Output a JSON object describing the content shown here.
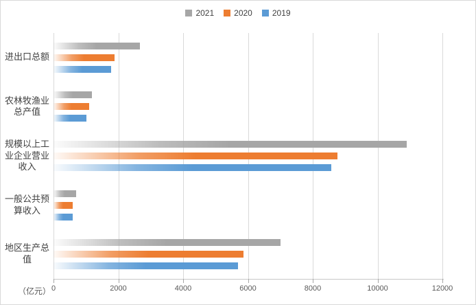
{
  "chart_data": {
    "type": "bar",
    "orientation": "horizontal",
    "title": "",
    "unit_label": "（亿元）",
    "xlabel": "",
    "ylabel": "",
    "xlim": [
      0,
      12000
    ],
    "x_ticks": [
      0,
      2000,
      4000,
      6000,
      8000,
      10000,
      12000
    ],
    "grid": true,
    "legend_position": "top-center",
    "categories": [
      "进出口总额",
      "农林牧渔业\n总产值",
      "规模以上工\n业企业营业\n收入",
      "一般公共预\n算收入",
      "地区生产总\n值"
    ],
    "series": [
      {
        "name": "2021",
        "color": "#a6a6a6",
        "values": [
          2670,
          1180,
          10900,
          700,
          7000
        ]
      },
      {
        "name": "2020",
        "color": "#ed7d31",
        "values": [
          1880,
          1100,
          8760,
          600,
          5860
        ]
      },
      {
        "name": "2019",
        "color": "#5b9bd5",
        "values": [
          1780,
          1010,
          8570,
          590,
          5690
        ]
      }
    ],
    "colors": {
      "gridline": "#d9d9d9",
      "axis_line": "#c8c8c8",
      "tick": "#a6a6a6",
      "axis_text": "#595959",
      "label_text": "#404040"
    }
  }
}
